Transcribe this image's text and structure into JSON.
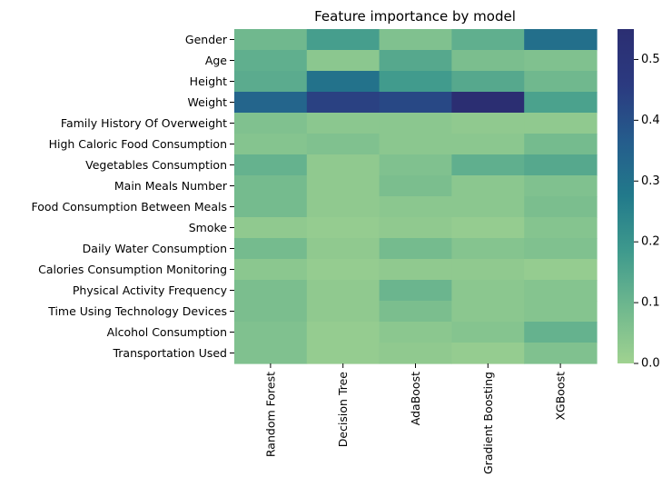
{
  "chart_data": {
    "type": "heatmap",
    "title": "Feature importance by model",
    "xlabel": "",
    "ylabel": "",
    "columns": [
      "Random Forest",
      "Decision Tree",
      "AdaBoost",
      "Gradient Boosting",
      "XGBoost"
    ],
    "rows": [
      "Gender",
      "Age",
      "Height",
      "Weight",
      "Family History Of Overweight",
      "High Caloric Food Consumption",
      "Vegetables Consumption",
      "Main Meals Number",
      "Food Consumption Between Meals",
      "Smoke",
      "Daily Water Consumption",
      "Calories Consumption Monitoring",
      "Physical Activity Frequency",
      "Time Using Technology Devices",
      "Alcohol Consumption",
      "Transportation Used"
    ],
    "values": [
      [
        0.09,
        0.17,
        0.06,
        0.12,
        0.31
      ],
      [
        0.12,
        0.04,
        0.14,
        0.07,
        0.06
      ],
      [
        0.13,
        0.3,
        0.18,
        0.14,
        0.09
      ],
      [
        0.34,
        0.44,
        0.42,
        0.55,
        0.16
      ],
      [
        0.06,
        0.04,
        0.04,
        0.03,
        0.03
      ],
      [
        0.05,
        0.06,
        0.04,
        0.04,
        0.08
      ],
      [
        0.11,
        0.03,
        0.06,
        0.12,
        0.14
      ],
      [
        0.08,
        0.03,
        0.07,
        0.04,
        0.06
      ],
      [
        0.08,
        0.03,
        0.04,
        0.04,
        0.07
      ],
      [
        0.03,
        0.02,
        0.03,
        0.02,
        0.05
      ],
      [
        0.08,
        0.03,
        0.08,
        0.05,
        0.06
      ],
      [
        0.04,
        0.02,
        0.03,
        0.03,
        0.02
      ],
      [
        0.07,
        0.03,
        0.1,
        0.04,
        0.05
      ],
      [
        0.07,
        0.03,
        0.07,
        0.04,
        0.05
      ],
      [
        0.06,
        0.02,
        0.04,
        0.05,
        0.11
      ],
      [
        0.06,
        0.02,
        0.03,
        0.02,
        0.06
      ]
    ],
    "colorbar": {
      "min": 0.0,
      "max": 0.55,
      "ticks": [
        0.0,
        0.1,
        0.2,
        0.3,
        0.4,
        0.5
      ],
      "tick_labels": [
        "0.0",
        "0.1",
        "0.2",
        "0.3",
        "0.4",
        "0.5"
      ],
      "colormap": [
        "#a0d290",
        "#6fb88e",
        "#3f9a8d",
        "#227a8b",
        "#255c8c",
        "#2b3a80",
        "#2b2e72"
      ]
    }
  }
}
